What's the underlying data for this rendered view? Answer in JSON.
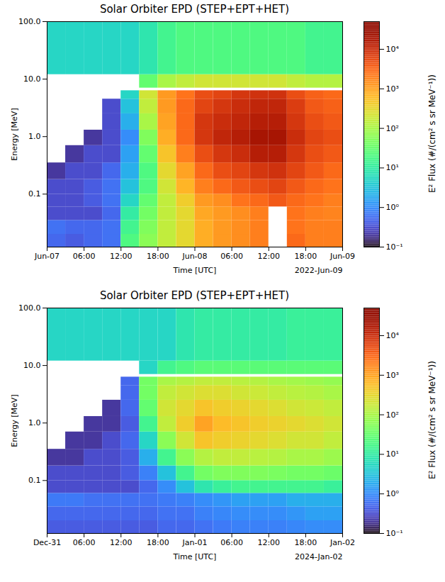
{
  "chart_data": [
    {
      "type": "heatmap",
      "title": "Solar Orbiter EPD (STEP+EPT+HET)",
      "x_label": "Time [UTC]",
      "y_label": "Energy [MeV]",
      "x_offset_label": "2022-Jun-09",
      "log": "y",
      "xlim": [
        "2022-06-07T00:00",
        "2022-06-09T00:00"
      ],
      "xticks": [
        {
          "value": "2022-06-07T00:00",
          "label": "Jun-07"
        },
        {
          "value": "2022-06-07T06:00",
          "label": "06:00"
        },
        {
          "value": "2022-06-07T12:00",
          "label": "12:00"
        },
        {
          "value": "2022-06-07T18:00",
          "label": "18:00"
        },
        {
          "value": "2022-06-08T00:00",
          "label": "Jun-08"
        },
        {
          "value": "2022-06-08T06:00",
          "label": "06:00"
        },
        {
          "value": "2022-06-08T12:00",
          "label": "12:00"
        },
        {
          "value": "2022-06-08T18:00",
          "label": "18:00"
        },
        {
          "value": "2022-06-09T00:00",
          "label": "Jun-09"
        }
      ],
      "ylim": [
        0.012,
        100
      ],
      "yticks": [
        0.1,
        {
          "value": 1,
          "label": "1.0"
        },
        {
          "value": 10,
          "label": "10.0"
        },
        {
          "value": 100,
          "label": "100.0"
        }
      ],
      "colorbar": {
        "label": "E² Flux (#/(cm² s sr MeV⁻¹))",
        "color": "turbo",
        "log": true,
        "range": [
          0.1,
          50000
        ],
        "ticks": [
          {
            "value": 0.1,
            "label": "10⁻¹"
          },
          {
            "value": 1,
            "label": "10⁰"
          },
          {
            "value": 10,
            "label": "10¹"
          },
          {
            "value": 100,
            "label": "10²"
          },
          {
            "value": 1000,
            "label": "10³"
          },
          {
            "value": 10000,
            "label": "10⁴"
          }
        ]
      },
      "cells": {
        "x_edges": [
          "2022-06-07T00:00",
          "2022-06-07T03:00",
          "2022-06-07T06:00",
          "2022-06-07T09:00",
          "2022-06-07T12:00",
          "2022-06-07T15:00",
          "2022-06-07T18:00",
          "2022-06-07T21:00",
          "2022-06-08T00:00",
          "2022-06-08T03:00",
          "2022-06-08T06:00",
          "2022-06-08T09:00",
          "2022-06-08T12:00",
          "2022-06-08T15:00",
          "2022-06-08T18:00",
          "2022-06-08T21:00",
          "2022-06-09T00:00"
        ],
        "y_edges": [
          0.012,
          0.02,
          0.035,
          0.06,
          0.1,
          0.18,
          0.35,
          0.7,
          1.3,
          2.5,
          4.5,
          6.3,
          7,
          12,
          100
        ],
        "values": [
          [
            0.5,
            0.4,
            0.5,
            0.6,
            20,
            60,
            150,
            300,
            800,
            1200,
            1500,
            2000,
            null,
            3000,
            2000,
            2000
          ],
          [
            0.6,
            0.5,
            0.5,
            0.6,
            15,
            50,
            150,
            300,
            800,
            1200,
            1500,
            2000,
            null,
            2500,
            2000,
            2000
          ],
          [
            0.3,
            0.3,
            0.3,
            0.5,
            10,
            40,
            150,
            300,
            900,
            1200,
            1500,
            2000,
            null,
            2500,
            2000,
            1800
          ],
          [
            0.3,
            0.3,
            0.4,
            0.6,
            5,
            30,
            150,
            400,
            1200,
            1500,
            2500,
            3000,
            4000,
            3000,
            2500,
            2000
          ],
          [
            0.3,
            0.3,
            0.4,
            0.6,
            3,
            20,
            200,
            700,
            2000,
            3000,
            4000,
            5000,
            6000,
            4000,
            3000,
            2500
          ],
          [
            0.2,
            0.3,
            0.3,
            0.5,
            2,
            20,
            300,
            1000,
            3000,
            5000,
            6000,
            8000,
            9000,
            6000,
            4000,
            3000
          ],
          [
            null,
            0.2,
            0.3,
            0.3,
            1.5,
            30,
            500,
            2000,
            5000,
            8000,
            10000,
            15000,
            15000,
            8000,
            5000,
            4000
          ],
          [
            null,
            null,
            0.2,
            0.3,
            1,
            50,
            800,
            3000,
            8000,
            12000,
            15000,
            20000,
            20000,
            10000,
            6000,
            5000
          ],
          [
            null,
            null,
            null,
            0.3,
            2,
            100,
            1000,
            3000,
            8000,
            10000,
            12000,
            15000,
            15000,
            8000,
            5000,
            4000
          ],
          [
            null,
            null,
            null,
            0.3,
            3,
            150,
            1200,
            3000,
            6000,
            8000,
            10000,
            12000,
            12000,
            7000,
            4000,
            3500
          ],
          [
            null,
            null,
            null,
            null,
            5,
            200,
            1200,
            2500,
            5000,
            6000,
            8000,
            9000,
            9000,
            5000,
            3500,
            3000
          ],
          [
            null,
            null,
            null,
            null,
            null,
            null,
            null,
            null,
            null,
            null,
            null,
            null,
            null,
            null,
            null,
            null
          ],
          [
            null,
            null,
            null,
            null,
            null,
            30,
            100,
            150,
            200,
            200,
            200,
            200,
            200,
            150,
            120,
            120
          ],
          [
            5,
            5,
            5,
            5,
            5,
            8,
            15,
            20,
            20,
            20,
            20,
            20,
            20,
            20,
            15,
            15
          ]
        ]
      }
    },
    {
      "type": "heatmap",
      "title": "Solar Orbiter EPD (STEP+EPT+HET)",
      "x_label": "Time [UTC]",
      "y_label": "Energy [MeV]",
      "x_offset_label": "2024-Jan-02",
      "log": "y",
      "xlim": [
        "2023-12-31T00:00",
        "2024-01-02T00:00"
      ],
      "xticks": [
        {
          "value": "2023-12-31T00:00",
          "label": "Dec-31"
        },
        {
          "value": "2023-12-31T06:00",
          "label": "06:00"
        },
        {
          "value": "2023-12-31T12:00",
          "label": "12:00"
        },
        {
          "value": "2023-12-31T18:00",
          "label": "18:00"
        },
        {
          "value": "2024-01-01T00:00",
          "label": "Jan-01"
        },
        {
          "value": "2024-01-01T06:00",
          "label": "06:00"
        },
        {
          "value": "2024-01-01T12:00",
          "label": "12:00"
        },
        {
          "value": "2024-01-01T18:00",
          "label": "18:00"
        },
        {
          "value": "2024-01-02T00:00",
          "label": "Jan-02"
        }
      ],
      "ylim": [
        0.012,
        100
      ],
      "yticks": [
        0.1,
        {
          "value": 1,
          "label": "1.0"
        },
        {
          "value": 10,
          "label": "10.0"
        },
        {
          "value": 100,
          "label": "100.0"
        }
      ],
      "colorbar": {
        "label": "E² Flux (#/(cm² s sr MeV⁻¹))",
        "color": "turbo",
        "log": true,
        "range": [
          0.1,
          50000
        ],
        "ticks": [
          {
            "value": 0.1,
            "label": "10⁻¹"
          },
          {
            "value": 1,
            "label": "10⁰"
          },
          {
            "value": 10,
            "label": "10¹"
          },
          {
            "value": 100,
            "label": "10²"
          },
          {
            "value": 1000,
            "label": "10³"
          },
          {
            "value": 10000,
            "label": "10⁴"
          }
        ]
      },
      "cells": {
        "x_edges": [
          "2023-12-31T00:00",
          "2023-12-31T03:00",
          "2023-12-31T06:00",
          "2023-12-31T09:00",
          "2023-12-31T12:00",
          "2023-12-31T15:00",
          "2023-12-31T18:00",
          "2023-12-31T21:00",
          "2024-01-01T00:00",
          "2024-01-01T03:00",
          "2024-01-01T06:00",
          "2024-01-01T09:00",
          "2024-01-01T12:00",
          "2024-01-01T15:00",
          "2024-01-01T18:00",
          "2024-01-01T21:00",
          "2024-01-02T00:00"
        ],
        "y_edges": [
          0.012,
          0.02,
          0.035,
          0.06,
          0.1,
          0.18,
          0.35,
          0.7,
          1.3,
          2.5,
          4.5,
          6.3,
          7,
          12,
          100
        ],
        "values": [
          [
            0.4,
            0.4,
            0.4,
            0.4,
            0.4,
            0.4,
            0.5,
            0.5,
            0.6,
            0.7,
            0.8,
            0.8,
            0.8,
            0.9,
            1,
            1
          ],
          [
            0.5,
            0.5,
            0.5,
            0.5,
            0.5,
            0.5,
            0.6,
            0.6,
            0.8,
            0.9,
            1,
            1,
            1,
            1.2,
            1.5,
            1.5
          ],
          [
            0.7,
            0.7,
            0.6,
            0.6,
            0.6,
            0.6,
            0.7,
            0.8,
            1,
            1.2,
            1.5,
            1.5,
            1.5,
            2,
            2,
            2
          ],
          [
            0.3,
            0.3,
            0.3,
            0.3,
            0.3,
            0.5,
            1,
            3,
            8,
            12,
            15,
            15,
            15,
            15,
            15,
            12
          ],
          [
            0.3,
            0.3,
            0.3,
            0.3,
            0.4,
            0.8,
            3,
            15,
            40,
            50,
            50,
            50,
            45,
            40,
            40,
            35
          ],
          [
            0.2,
            0.2,
            0.3,
            0.3,
            0.4,
            2,
            15,
            60,
            120,
            150,
            150,
            130,
            120,
            100,
            100,
            80
          ],
          [
            null,
            0.2,
            0.2,
            0.3,
            0.5,
            5,
            60,
            200,
            500,
            400,
            350,
            300,
            250,
            200,
            200,
            150
          ],
          [
            null,
            null,
            0.2,
            0.2,
            0.4,
            15,
            150,
            400,
            1000,
            600,
            500,
            400,
            350,
            300,
            250,
            200
          ],
          [
            null,
            null,
            null,
            0.2,
            0.5,
            30,
            200,
            300,
            500,
            400,
            350,
            300,
            250,
            200,
            180,
            150
          ],
          [
            null,
            null,
            null,
            null,
            0.5,
            40,
            150,
            200,
            250,
            250,
            200,
            180,
            150,
            130,
            120,
            100
          ],
          [
            null,
            null,
            null,
            null,
            0.5,
            40,
            100,
            120,
            150,
            150,
            130,
            120,
            100,
            90,
            80,
            70
          ],
          [
            null,
            null,
            null,
            null,
            null,
            null,
            null,
            null,
            null,
            null,
            null,
            null,
            null,
            null,
            null,
            null
          ],
          [
            null,
            null,
            null,
            null,
            null,
            5,
            15,
            20,
            25,
            25,
            25,
            25,
            25,
            25,
            25,
            25
          ],
          [
            5,
            5,
            5,
            5,
            5,
            5,
            5,
            8,
            10,
            10,
            10,
            10,
            10,
            12,
            12,
            12
          ]
        ]
      }
    }
  ]
}
